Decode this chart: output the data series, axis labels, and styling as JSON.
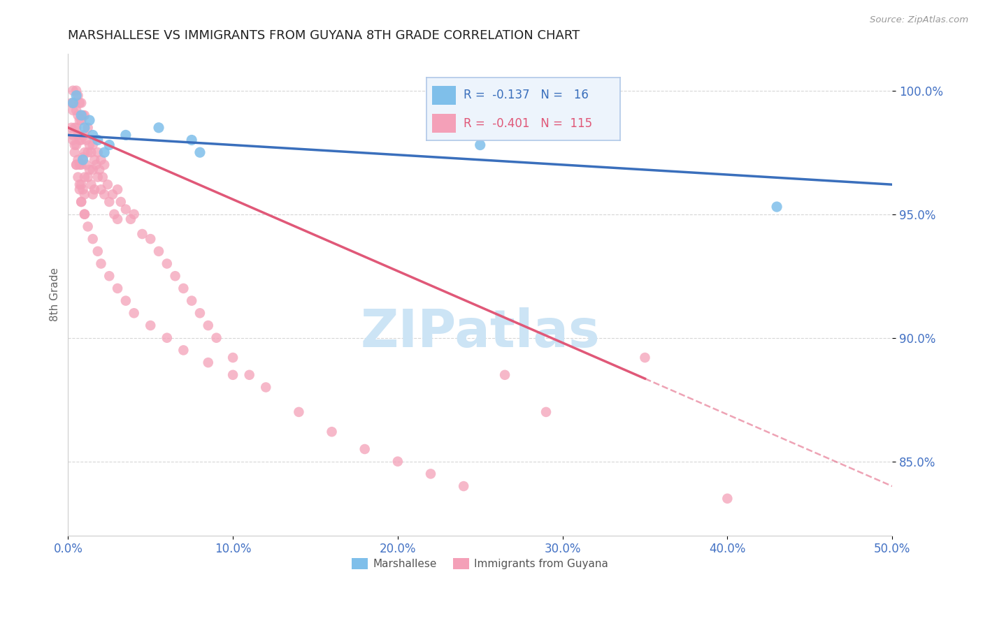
{
  "title": "MARSHALLESE VS IMMIGRANTS FROM GUYANA 8TH GRADE CORRELATION CHART",
  "source_text": "Source: ZipAtlas.com",
  "ylabel": "8th Grade",
  "xlim": [
    0.0,
    50.0
  ],
  "ylim": [
    82.0,
    101.5
  ],
  "yticks": [
    85.0,
    90.0,
    95.0,
    100.0
  ],
  "xticks": [
    0.0,
    10.0,
    20.0,
    30.0,
    40.0,
    50.0
  ],
  "blue_label": "Marshallese",
  "pink_label": "Immigrants from Guyana",
  "blue_R": "-0.137",
  "blue_N": "16",
  "pink_R": "-0.401",
  "pink_N": "115",
  "blue_color": "#7fbfea",
  "pink_color": "#f4a0b8",
  "blue_line_color": "#3a6fbc",
  "pink_line_color": "#e05878",
  "title_color": "#222222",
  "axis_label_color": "#4472c4",
  "watermark_color": "#cce4f5",
  "blue_x": [
    0.3,
    0.5,
    0.8,
    1.0,
    1.3,
    1.5,
    1.8,
    2.2,
    2.5,
    3.5,
    5.5,
    7.5,
    8.0,
    25.0,
    43.0,
    0.9
  ],
  "blue_y": [
    99.5,
    99.8,
    99.0,
    98.5,
    98.8,
    98.2,
    98.0,
    97.5,
    97.8,
    98.2,
    98.5,
    98.0,
    97.5,
    97.8,
    95.3,
    97.2
  ],
  "pink_x": [
    0.2,
    0.2,
    0.3,
    0.3,
    0.3,
    0.4,
    0.4,
    0.4,
    0.5,
    0.5,
    0.5,
    0.5,
    0.5,
    0.6,
    0.6,
    0.6,
    0.6,
    0.7,
    0.7,
    0.7,
    0.7,
    0.7,
    0.8,
    0.8,
    0.8,
    0.8,
    0.8,
    0.8,
    0.9,
    0.9,
    0.9,
    0.9,
    1.0,
    1.0,
    1.0,
    1.0,
    1.0,
    1.0,
    1.1,
    1.1,
    1.2,
    1.2,
    1.2,
    1.3,
    1.3,
    1.4,
    1.4,
    1.5,
    1.5,
    1.5,
    1.6,
    1.6,
    1.7,
    1.8,
    1.8,
    1.9,
    2.0,
    2.0,
    2.1,
    2.2,
    2.2,
    2.4,
    2.5,
    2.7,
    2.8,
    3.0,
    3.0,
    3.2,
    3.5,
    3.8,
    4.0,
    4.5,
    5.0,
    5.5,
    6.0,
    6.5,
    7.0,
    7.5,
    8.0,
    8.5,
    9.0,
    10.0,
    11.0,
    12.0,
    14.0,
    16.0,
    18.0,
    20.0,
    22.0,
    24.0,
    26.5,
    29.0,
    35.0,
    40.0,
    0.3,
    0.4,
    0.5,
    0.6,
    0.7,
    0.8,
    1.0,
    1.2,
    1.5,
    1.8,
    2.0,
    2.5,
    3.0,
    3.5,
    4.0,
    5.0,
    6.0,
    7.0,
    8.5,
    10.0
  ],
  "pink_y": [
    99.5,
    98.5,
    100.0,
    99.2,
    98.0,
    99.5,
    98.5,
    97.5,
    100.0,
    99.2,
    98.5,
    97.8,
    97.0,
    99.8,
    99.0,
    98.2,
    97.2,
    99.5,
    98.8,
    98.0,
    97.0,
    96.2,
    99.5,
    98.8,
    98.0,
    97.0,
    96.2,
    95.5,
    99.0,
    98.2,
    97.3,
    96.0,
    99.0,
    98.2,
    97.5,
    96.5,
    95.8,
    95.0,
    98.0,
    97.0,
    98.5,
    97.5,
    96.5,
    97.8,
    96.8,
    97.5,
    96.2,
    97.8,
    96.8,
    95.8,
    97.2,
    96.0,
    97.0,
    97.5,
    96.5,
    96.8,
    97.2,
    96.0,
    96.5,
    97.0,
    95.8,
    96.2,
    95.5,
    95.8,
    95.0,
    96.0,
    94.8,
    95.5,
    95.2,
    94.8,
    95.0,
    94.2,
    94.0,
    93.5,
    93.0,
    92.5,
    92.0,
    91.5,
    91.0,
    90.5,
    90.0,
    89.2,
    88.5,
    88.0,
    87.0,
    86.2,
    85.5,
    85.0,
    84.5,
    84.0,
    88.5,
    87.0,
    89.2,
    83.5,
    98.2,
    97.8,
    97.0,
    96.5,
    96.0,
    95.5,
    95.0,
    94.5,
    94.0,
    93.5,
    93.0,
    92.5,
    92.0,
    91.5,
    91.0,
    90.5,
    90.0,
    89.5,
    89.0,
    88.5
  ],
  "pink_line_solid_end_x": 35.0,
  "pink_line_start_x": 0.0,
  "pink_line_end_x": 50.0,
  "blue_line_intercept": 98.2,
  "blue_line_slope": -0.04,
  "pink_line_intercept": 98.5,
  "pink_line_slope": -0.29
}
